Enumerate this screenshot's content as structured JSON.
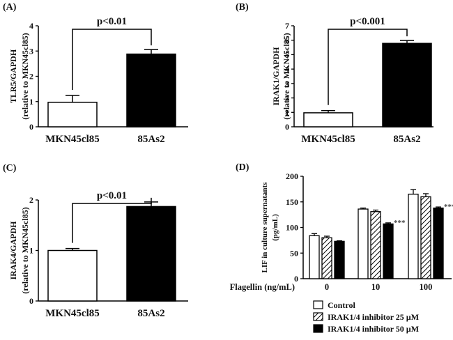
{
  "chart_data": [
    {
      "panel": "(A)",
      "type": "bar",
      "categories": [
        "MKN45cl85",
        "85As2"
      ],
      "values": [
        0.97,
        2.88
      ],
      "errors": [
        0.27,
        0.18
      ],
      "colors": [
        "#ffffff",
        "#000000"
      ],
      "ylabel": "TLR5/GAPDH",
      "ylabel2": "(relative to MKN45cl85)",
      "ylim": [
        0,
        4
      ],
      "yticks": [
        "0",
        "1",
        "2",
        "3",
        "4"
      ],
      "pvalue": "p<0.01"
    },
    {
      "panel": "(B)",
      "type": "bar",
      "categories": [
        "MKN45cl85",
        "85As2"
      ],
      "values": [
        0.97,
        5.78
      ],
      "errors": [
        0.15,
        0.2
      ],
      "colors": [
        "#ffffff",
        "#000000"
      ],
      "ylabel": "IRAK1/GAPDH",
      "ylabel2": "(relative to MKN45cl85)",
      "ylim": [
        0,
        7
      ],
      "yticks": [
        "0",
        "1",
        "2",
        "3",
        "4",
        "5",
        "6",
        "7"
      ],
      "pvalue": "p<0.001"
    },
    {
      "panel": "(C)",
      "type": "bar",
      "categories": [
        "MKN45cl85",
        "85As2"
      ],
      "values": [
        1.0,
        1.87
      ],
      "errors": [
        0.04,
        0.09
      ],
      "colors": [
        "#ffffff",
        "#000000"
      ],
      "ylabel": "IRAK4/GAPDH",
      "ylabel2": "(relative to MKN45cl85)",
      "ylim": [
        0,
        2
      ],
      "yticks": [
        "0",
        "1",
        "2"
      ],
      "pvalue": "p<0.01"
    },
    {
      "panel": "(D)",
      "type": "bar",
      "categories": [
        "0",
        "10",
        "100"
      ],
      "xlabel": "Flagellin (ng/mL)",
      "ylabel": "LIF in culture supernatants",
      "ylabel2": "(pg/mL)",
      "ylim": [
        0,
        200
      ],
      "yticks": [
        "0",
        "50",
        "100",
        "150",
        "200"
      ],
      "series": [
        {
          "name": "Control",
          "values": [
            84,
            136,
            165
          ],
          "errors": [
            4,
            2,
            9
          ],
          "fill": "white"
        },
        {
          "name": "IRAK1/4 inhibitor 25 µM",
          "values": [
            80,
            131,
            160
          ],
          "errors": [
            3,
            3,
            6
          ],
          "fill": "hatched"
        },
        {
          "name": "IRAK1/4 inhibitor 50 µM",
          "values": [
            73,
            107,
            138
          ],
          "errors": [
            1,
            2,
            2
          ],
          "fill": "black"
        }
      ],
      "significance": [
        "",
        "***",
        "***"
      ]
    }
  ]
}
